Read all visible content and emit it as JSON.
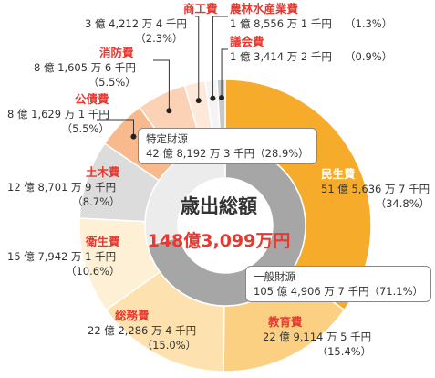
{
  "chart_data": {
    "type": "pie",
    "title": "歳出総額",
    "total": "148億3,099万円",
    "slices": [
      {
        "name": "民生費",
        "amount": "51 億 5,636 万 7 千円",
        "percent": "（34.8%）",
        "value": 34.8,
        "color": "#f6ab2b"
      },
      {
        "name": "教育費",
        "amount": "22 億 9,114 万 5 千円",
        "percent": "（15.4%）",
        "value": 15.4,
        "color": "#fbd083"
      },
      {
        "name": "総務費",
        "amount": "22 億 2,286 万 4 千円",
        "percent": "（15.0%）",
        "value": 15.0,
        "color": "#fde2b0"
      },
      {
        "name": "衛生費",
        "amount": "15 億 7,942 万 1 千円",
        "percent": "（10.6%）",
        "value": 10.6,
        "color": "#fdf0d5"
      },
      {
        "name": "土木費",
        "amount": "12 億 8,701 万 9 千円",
        "percent": "（8.7%）",
        "value": 8.7,
        "color": "#dcdcdc"
      },
      {
        "name": "公債費",
        "amount": "8 億 1,629 万 1 千円",
        "percent": "（5.5%）",
        "value": 5.5,
        "color": "#f8b98c"
      },
      {
        "name": "消防費",
        "amount": "8 億 1,605 万 6 千円",
        "percent": "（5.5%）",
        "value": 5.5,
        "color": "#fbd2b5"
      },
      {
        "name": "商工費",
        "amount": "3 億 4,212 万 4 千円",
        "percent": "（2.3%）",
        "value": 2.3,
        "color": "#fde8da"
      },
      {
        "name": "農林水産業費",
        "amount": "1 億 8,556 万 1 千円",
        "percent": "（1.3%）",
        "value": 1.3,
        "color": "#f4f4f4"
      },
      {
        "name": "議会費",
        "amount": "1 億 3,414 万 2 千円",
        "percent": "（0.9%）",
        "value": 0.9,
        "color": "#c8c8c8"
      }
    ],
    "inner_ring": [
      {
        "name": "一般財源",
        "amount": "105 億 4,906 万 7 千円（71.1%）",
        "value": 71.1,
        "color": "#a6a6a6"
      },
      {
        "name": "特定財源",
        "amount": "42 億 8,192 万 3 千円（28.9%）",
        "value": 28.9,
        "color": "#ececec"
      }
    ]
  }
}
